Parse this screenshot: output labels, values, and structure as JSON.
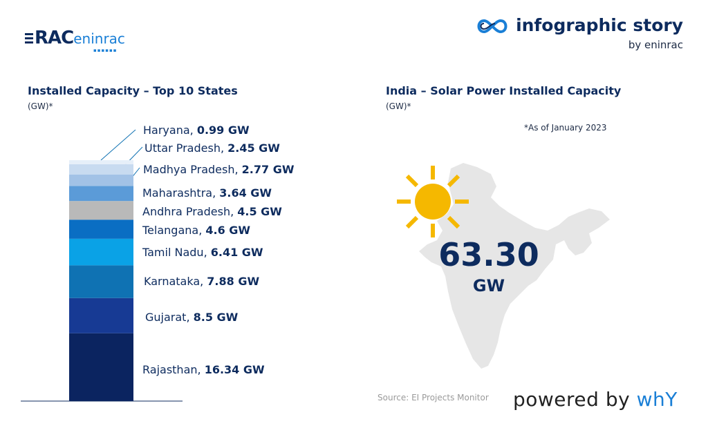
{
  "header": {
    "logo_left_prefix": "RAC",
    "logo_left_suffix": "eninrac",
    "brand_name": "infographic story",
    "brand_by": "by eninrac"
  },
  "left": {
    "title": "Installed Capacity – Top 10 States",
    "unit": "(GW)*"
  },
  "right": {
    "title": "India – Solar Power Installed Capacity",
    "unit": "(GW)*",
    "note": "*As of January 2023",
    "total_value": "63.30",
    "total_unit": "GW"
  },
  "footer": {
    "source": "Source: EI Projects Monitor",
    "powered_prefix": "powered by ",
    "powered_brand": "whY"
  },
  "colors": {
    "navy": "#0d2b5e",
    "sun": "#f5b800",
    "map": "#e6e6e6"
  },
  "chart_data": {
    "type": "bar",
    "stacked": true,
    "categories": [
      "Rajasthan",
      "Gujarat",
      "Karnataka",
      "Tamil Nadu",
      "Telangana",
      "Andhra Pradesh",
      "Maharashtra",
      "Madhya Pradesh",
      "Uttar Pradesh",
      "Haryana"
    ],
    "values": [
      16.34,
      8.5,
      7.88,
      6.41,
      4.6,
      4.5,
      3.64,
      2.77,
      2.45,
      0.99
    ],
    "value_labels": [
      "16.34 GW",
      "8.5 GW",
      "7.88 GW",
      "6.41 GW",
      "4.6 GW",
      "4.5 GW",
      "3.64 GW",
      "2.77 GW",
      "2.45 GW",
      "0.99 GW"
    ],
    "colors": [
      "#0b2460",
      "#173a94",
      "#0f72b3",
      "#0aa2e6",
      "#0a6ec3",
      "#b9b9b9",
      "#5b9bd8",
      "#a2c2e6",
      "#c8dbf0",
      "#e6eff9"
    ]
  }
}
